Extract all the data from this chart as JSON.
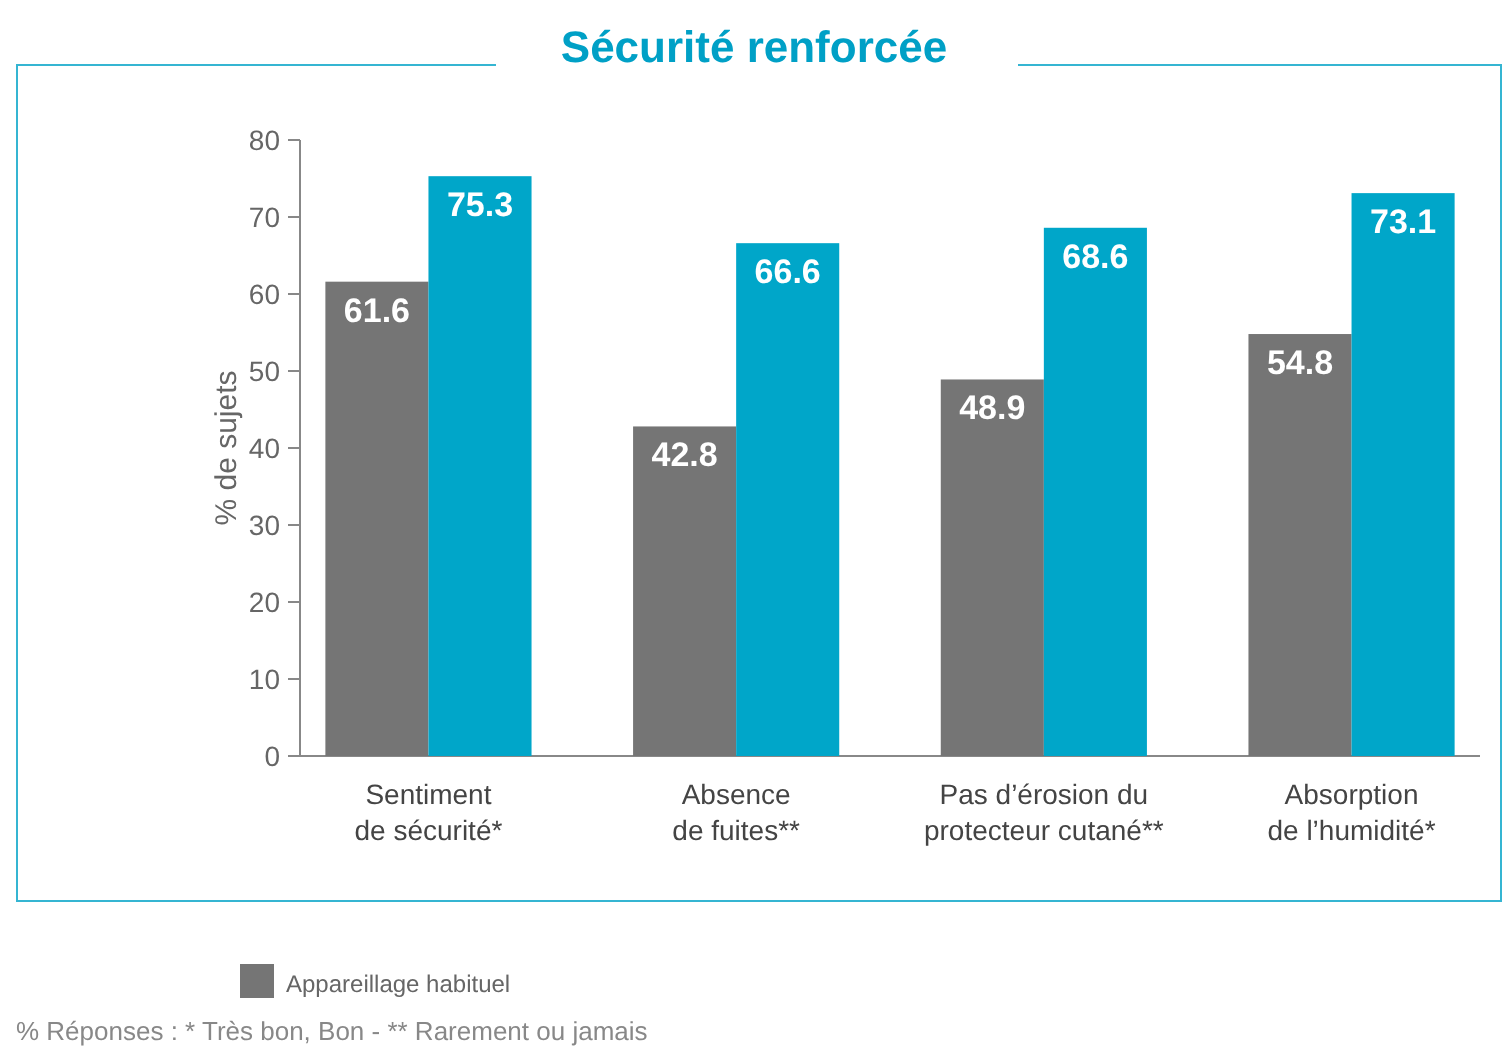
{
  "chart_data": {
    "type": "bar",
    "title": "Sécurité renforcée",
    "ylabel": "% de sujets",
    "categories": [
      "Sentiment\nde sécurité*",
      "Absence\nde fuites**",
      "Pas d’érosion du\nprotecteur cutané**",
      "Absorption\nde l’humidité*"
    ],
    "series": [
      {
        "name": "Appareillage habituel",
        "color": "#757575",
        "values": [
          61.6,
          42.8,
          48.9,
          54.8
        ]
      },
      {
        "color": "#00a6c9",
        "values": [
          75.3,
          66.6,
          68.6,
          73.1
        ]
      }
    ],
    "ylim": [
      0,
      80
    ],
    "yticks": [
      0,
      10,
      20,
      30,
      40,
      50,
      60,
      70,
      80
    ],
    "grid": false,
    "data_labels": true,
    "legend": "bottom left",
    "annotations": [
      "% Réponses : * Très bon, Bon - **  Rarement ou jamais"
    ]
  }
}
